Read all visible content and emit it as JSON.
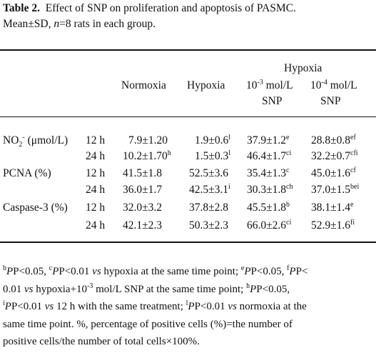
{
  "caption": {
    "label": "Table 2.",
    "text": "Effect of SNP on proliferation and apoptosis of PASMC.",
    "line2_pre": "Mean±SD, ",
    "line2_n": "n",
    "line2_post": "=8 rats in each group."
  },
  "header": {
    "group": "Hypoxia",
    "normoxia": "Normoxia",
    "hypoxia": "Hypoxia",
    "snp1_pre": "10",
    "snp1_exp": "-3",
    "snp1_unit": " mol/L",
    "snp2_pre": "10",
    "snp2_exp": "-4",
    "snp2_unit": " mol/L",
    "snp_label": "SNP"
  },
  "rows": [
    {
      "name": "NO",
      "name_sub": "2",
      "name_sup": "-",
      "name_rest": " (μmol/L)",
      "time": "12 h",
      "c1": "7.9±1.20",
      "c1s": "",
      "c2": "1.9±0.6",
      "c2s": "l",
      "c3": "37.9±1.2",
      "c3s": "e",
      "c4": "28.8±0.8",
      "c4s": "ef"
    },
    {
      "name": "",
      "time": "24 h",
      "c1": "10.2±1.70",
      "c1s": "h",
      "c2": "1.5±0.3",
      "c2s": "l",
      "c3": "46.4±1.7",
      "c3s": "ci",
      "c4": "32.2±0.7",
      "c4s": "cfi"
    },
    {
      "name": "PCNA (%)",
      "time": "12 h",
      "c1": "41.5±1.8",
      "c1s": "",
      "c2": "52.5±3.6",
      "c2s": "",
      "c3": "35.4±1.3",
      "c3s": "c",
      "c4": "45.0±1.6",
      "c4s": "cf"
    },
    {
      "name": "",
      "time": "24 h",
      "c1": "36.0±1.7",
      "c1s": "",
      "c2": "42.5±3.1",
      "c2s": "i",
      "c3": "30.3±1.8",
      "c3s": "ch",
      "c4": "37.0±1.5",
      "c4s": "bei"
    },
    {
      "name": "Caspase-3 (%)",
      "time": "12 h",
      "c1": "32.0±3.2",
      "c1s": "",
      "c2": "37.8±2.8",
      "c2s": "",
      "c3": "45.5±1.8",
      "c3s": "b",
      "c4": "38.1±1.4",
      "c4s": "e"
    },
    {
      "name": "",
      "time": "24 h",
      "c1": "42.1±2.3",
      "c1s": "",
      "c2": "50.3±2.3",
      "c2s": "",
      "c3": "66.0±2.6",
      "c3s": "ci",
      "c4": "52.9±1.6",
      "c4s": "fi"
    }
  ],
  "notes": {
    "b": "b",
    "b_txt": "P<0.05, ",
    "c": "c",
    "c_txt": "P<0.01 ",
    "vs": "vs",
    "t1": " hypoxia at the same time point; ",
    "e": "e",
    "e_txt": "P<0.05, ",
    "f": "f",
    "f_txt": "P<",
    "t2": "0.01 ",
    "t3": " hypoxia+10",
    "exp": "-3",
    "t4": " mol/L SNP at the same time point; ",
    "h": "h",
    "h_txt": "P<0.05,",
    "i": "i",
    "i_txt": "P<0.01 ",
    "t5": " 12 h with the same treatment; ",
    "l": "l",
    "l_txt": "P<0.01 ",
    "t6": " normoxia at the",
    "t7": "same time point. %, percentage of positive cells (%)=the number of",
    "t8": "positive cells/the number of total cells×100%."
  }
}
